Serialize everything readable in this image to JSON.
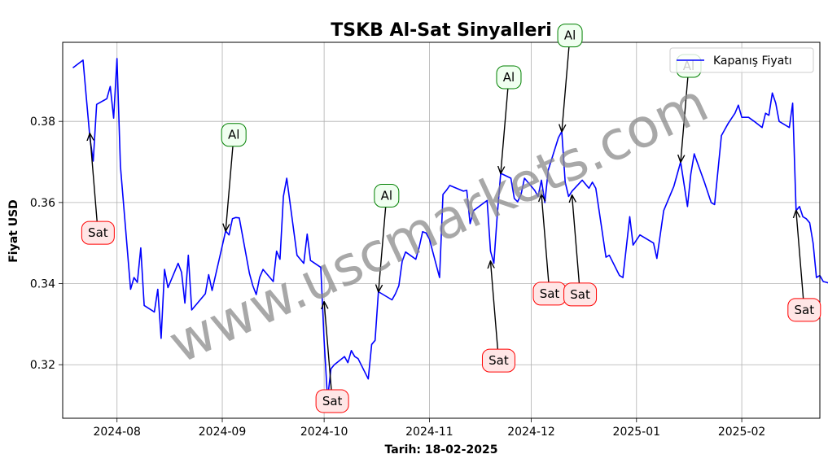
{
  "chart_data": {
    "type": "line",
    "title": "TSKB Al-Sat Sinyalleri",
    "xlabel": "Tarih: 18-02-2025",
    "ylabel": "Fiyat USD",
    "ylim": [
      0.3068,
      0.3995
    ],
    "xlim": [
      "2024-07-16",
      "2025-02-24"
    ],
    "x_ticks": [
      {
        "date": "2024-08-01",
        "label": "2024-08"
      },
      {
        "date": "2024-09-01",
        "label": "2024-09"
      },
      {
        "date": "2024-10-01",
        "label": "2024-10"
      },
      {
        "date": "2024-11-01",
        "label": "2024-11"
      },
      {
        "date": "2024-12-01",
        "label": "2024-12"
      },
      {
        "date": "2025-01-01",
        "label": "2025-01"
      },
      {
        "date": "2025-02-01",
        "label": "2025-02"
      }
    ],
    "y_ticks": [
      {
        "value": 0.32,
        "label": "0.32"
      },
      {
        "value": 0.34,
        "label": "0.34"
      },
      {
        "value": 0.36,
        "label": "0.36"
      },
      {
        "value": 0.38,
        "label": "0.38"
      }
    ],
    "grid": true,
    "legend": {
      "position": "top-right"
    },
    "series": [
      {
        "name": "Kapanış Fiyatı",
        "color": "#0000ff",
        "points": [
          [
            "2024-07-19",
            0.3932
          ],
          [
            "2024-07-22",
            0.3951
          ],
          [
            "2024-07-23",
            0.3855
          ],
          [
            "2024-07-24",
            0.376
          ],
          [
            "2024-07-25",
            0.3702
          ],
          [
            "2024-07-26",
            0.3842
          ],
          [
            "2024-07-29",
            0.3856
          ],
          [
            "2024-07-30",
            0.3886
          ],
          [
            "2024-07-31",
            0.3808
          ],
          [
            "2024-08-01",
            0.3955
          ],
          [
            "2024-08-02",
            0.369
          ],
          [
            "2024-08-05",
            0.3386
          ],
          [
            "2024-08-06",
            0.3415
          ],
          [
            "2024-08-07",
            0.3403
          ],
          [
            "2024-08-08",
            0.3488
          ],
          [
            "2024-08-09",
            0.3346
          ],
          [
            "2024-08-12",
            0.333
          ],
          [
            "2024-08-13",
            0.3386
          ],
          [
            "2024-08-14",
            0.3265
          ],
          [
            "2024-08-15",
            0.3435
          ],
          [
            "2024-08-16",
            0.339
          ],
          [
            "2024-08-19",
            0.345
          ],
          [
            "2024-08-20",
            0.3428
          ],
          [
            "2024-08-21",
            0.3352
          ],
          [
            "2024-08-22",
            0.347
          ],
          [
            "2024-08-23",
            0.3335
          ],
          [
            "2024-08-27",
            0.3375
          ],
          [
            "2024-08-28",
            0.3422
          ],
          [
            "2024-08-29",
            0.3383
          ],
          [
            "2024-09-02",
            0.353
          ],
          [
            "2024-09-03",
            0.352
          ],
          [
            "2024-09-04",
            0.356
          ],
          [
            "2024-09-05",
            0.3563
          ],
          [
            "2024-09-06",
            0.3562
          ],
          [
            "2024-09-09",
            0.3425
          ],
          [
            "2024-09-10",
            0.3395
          ],
          [
            "2024-09-11",
            0.3373
          ],
          [
            "2024-09-12",
            0.3415
          ],
          [
            "2024-09-13",
            0.3435
          ],
          [
            "2024-09-16",
            0.3405
          ],
          [
            "2024-09-17",
            0.348
          ],
          [
            "2024-09-18",
            0.346
          ],
          [
            "2024-09-19",
            0.3615
          ],
          [
            "2024-09-20",
            0.366
          ],
          [
            "2024-09-23",
            0.347
          ],
          [
            "2024-09-24",
            0.346
          ],
          [
            "2024-09-25",
            0.345
          ],
          [
            "2024-09-26",
            0.3522
          ],
          [
            "2024-09-27",
            0.3457
          ],
          [
            "2024-09-30",
            0.344
          ],
          [
            "2024-10-01",
            0.326
          ],
          [
            "2024-10-02",
            0.3115
          ],
          [
            "2024-10-03",
            0.319
          ],
          [
            "2024-10-04",
            0.32
          ],
          [
            "2024-10-07",
            0.322
          ],
          [
            "2024-10-08",
            0.3205
          ],
          [
            "2024-10-09",
            0.3235
          ],
          [
            "2024-10-10",
            0.322
          ],
          [
            "2024-10-11",
            0.3215
          ],
          [
            "2024-10-14",
            0.3165
          ],
          [
            "2024-10-15",
            0.325
          ],
          [
            "2024-10-16",
            0.326
          ],
          [
            "2024-10-17",
            0.338
          ],
          [
            "2024-10-21",
            0.336
          ],
          [
            "2024-10-22",
            0.3375
          ],
          [
            "2024-10-23",
            0.3395
          ],
          [
            "2024-10-24",
            0.3455
          ],
          [
            "2024-10-25",
            0.3478
          ],
          [
            "2024-10-28",
            0.346
          ],
          [
            "2024-10-29",
            0.349
          ],
          [
            "2024-10-30",
            0.3528
          ],
          [
            "2024-10-31",
            0.3525
          ],
          [
            "2024-11-01",
            0.351
          ],
          [
            "2024-11-04",
            0.3415
          ],
          [
            "2024-11-05",
            0.362
          ],
          [
            "2024-11-06",
            0.363
          ],
          [
            "2024-11-07",
            0.3642
          ],
          [
            "2024-11-11",
            0.3628
          ],
          [
            "2024-11-12",
            0.363
          ],
          [
            "2024-11-13",
            0.3548
          ],
          [
            "2024-11-14",
            0.358
          ],
          [
            "2024-11-18",
            0.3605
          ],
          [
            "2024-11-19",
            0.348
          ],
          [
            "2024-11-20",
            0.345
          ],
          [
            "2024-11-21",
            0.357
          ],
          [
            "2024-11-22",
            0.3672
          ],
          [
            "2024-11-25",
            0.366
          ],
          [
            "2024-11-26",
            0.361
          ],
          [
            "2024-11-27",
            0.3602
          ],
          [
            "2024-11-28",
            0.362
          ],
          [
            "2024-11-29",
            0.366
          ],
          [
            "2024-12-02",
            0.363
          ],
          [
            "2024-12-03",
            0.3615
          ],
          [
            "2024-12-04",
            0.3655
          ],
          [
            "2024-12-05",
            0.36
          ],
          [
            "2024-12-06",
            0.368
          ],
          [
            "2024-12-09",
            0.376
          ],
          [
            "2024-12-10",
            0.3775
          ],
          [
            "2024-12-11",
            0.365
          ],
          [
            "2024-12-12",
            0.3615
          ],
          [
            "2024-12-13",
            0.3628
          ],
          [
            "2024-12-16",
            0.3655
          ],
          [
            "2024-12-18",
            0.3635
          ],
          [
            "2024-12-19",
            0.365
          ],
          [
            "2024-12-20",
            0.3635
          ],
          [
            "2024-12-23",
            0.3465
          ],
          [
            "2024-12-24",
            0.347
          ],
          [
            "2024-12-27",
            0.342
          ],
          [
            "2024-12-28",
            0.3415
          ],
          [
            "2024-12-30",
            0.3565
          ],
          [
            "2024-12-31",
            0.3495
          ],
          [
            "2025-01-02",
            0.352
          ],
          [
            "2025-01-06",
            0.35
          ],
          [
            "2025-01-07",
            0.3462
          ],
          [
            "2025-01-09",
            0.358
          ],
          [
            "2025-01-12",
            0.364
          ],
          [
            "2025-01-14",
            0.37
          ],
          [
            "2025-01-16",
            0.359
          ],
          [
            "2025-01-17",
            0.367
          ],
          [
            "2025-01-18",
            0.372
          ],
          [
            "2025-01-21",
            0.365
          ],
          [
            "2025-01-23",
            0.36
          ],
          [
            "2025-01-24",
            0.3595
          ],
          [
            "2025-01-26",
            0.3765
          ],
          [
            "2025-01-28",
            0.3795
          ],
          [
            "2025-01-30",
            0.382
          ],
          [
            "2025-01-31",
            0.384
          ],
          [
            "2025-02-01",
            0.381
          ],
          [
            "2025-02-03",
            0.381
          ],
          [
            "2025-02-05",
            0.3798
          ],
          [
            "2025-02-07",
            0.3785
          ],
          [
            "2025-02-08",
            0.382
          ],
          [
            "2025-02-09",
            0.3815
          ],
          [
            "2025-02-10",
            0.387
          ],
          [
            "2025-02-11",
            0.3845
          ],
          [
            "2025-02-12",
            0.38
          ],
          [
            "2025-02-15",
            0.3785
          ],
          [
            "2025-02-16",
            0.3845
          ],
          [
            "2025-02-17",
            0.358
          ],
          [
            "2025-02-18",
            0.359
          ],
          [
            "2025-02-19",
            0.3565
          ],
          [
            "2025-02-20",
            0.356
          ],
          [
            "2025-02-21",
            0.355
          ],
          [
            "2025-02-22",
            0.35
          ],
          [
            "2025-02-23",
            0.3415
          ],
          [
            "2025-02-24",
            0.342
          ],
          [
            "2025-02-25",
            0.3405
          ],
          [
            "2025-02-26",
            0.3403
          ],
          [
            "2025-02-27",
            0.34
          ],
          [
            "2025-02-28",
            0.3375
          ]
        ]
      }
    ],
    "signals": [
      {
        "label": "Sat",
        "type": "sell",
        "date": "2024-07-24",
        "price": 0.377
      },
      {
        "label": "Al",
        "type": "buy",
        "date": "2024-09-02",
        "price": 0.353
      },
      {
        "label": "Sat",
        "type": "sell",
        "date": "2024-10-01",
        "price": 0.3355
      },
      {
        "label": "Al",
        "type": "buy",
        "date": "2024-10-17",
        "price": 0.338
      },
      {
        "label": "Sat",
        "type": "sell",
        "date": "2024-11-19",
        "price": 0.3455
      },
      {
        "label": "Al",
        "type": "buy",
        "date": "2024-11-22",
        "price": 0.3672
      },
      {
        "label": "Sat",
        "type": "sell",
        "date": "2024-12-04",
        "price": 0.362
      },
      {
        "label": "Al",
        "type": "buy",
        "date": "2024-12-10",
        "price": 0.3775
      },
      {
        "label": "Sat",
        "type": "sell",
        "date": "2024-12-13",
        "price": 0.3618
      },
      {
        "label": "Al",
        "type": "buy",
        "date": "2025-01-14",
        "price": 0.37
      },
      {
        "label": "Sat",
        "type": "sell",
        "date": "2025-02-17",
        "price": 0.358
      }
    ],
    "watermark": "www.uscmarkets.com"
  }
}
